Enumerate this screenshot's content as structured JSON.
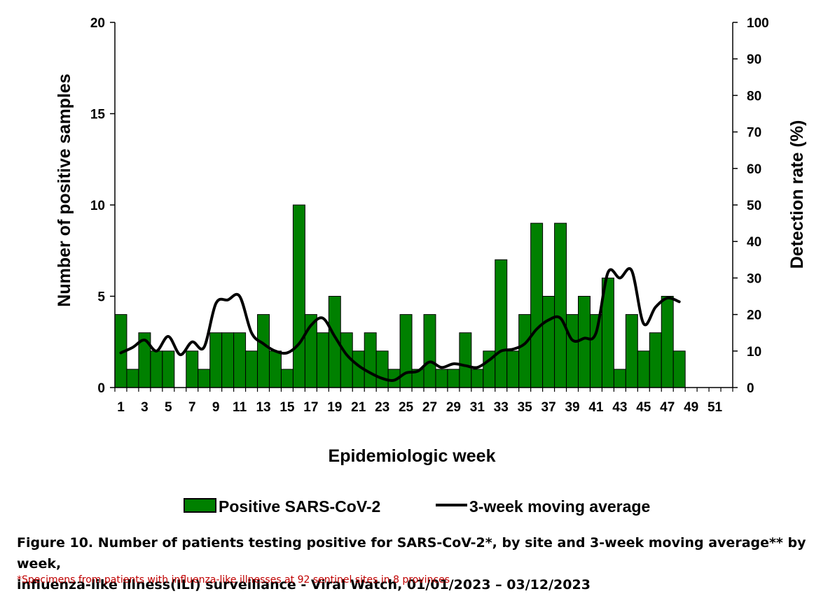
{
  "chart_data": {
    "type": "bar",
    "xlabel": "Epidemiologic week",
    "ylabel": "Number of positive samples",
    "y2label": "Detection rate (%)",
    "ylim": [
      0,
      20
    ],
    "y2lim": [
      0,
      100
    ],
    "yticks": [
      0,
      5,
      10,
      15,
      20
    ],
    "y2ticks": [
      0,
      10,
      20,
      30,
      40,
      50,
      60,
      70,
      80,
      90,
      100
    ],
    "x_tick_labels": [
      "1",
      "3",
      "5",
      "7",
      "9",
      "11",
      "13",
      "15",
      "17",
      "19",
      "21",
      "23",
      "25",
      "27",
      "29",
      "31",
      "33",
      "35",
      "37",
      "39",
      "41",
      "43",
      "45",
      "47",
      "49",
      "51"
    ],
    "weeks": [
      1,
      2,
      3,
      4,
      5,
      6,
      7,
      8,
      9,
      10,
      11,
      12,
      13,
      14,
      15,
      16,
      17,
      18,
      19,
      20,
      21,
      22,
      23,
      24,
      25,
      26,
      27,
      28,
      29,
      30,
      31,
      32,
      33,
      34,
      35,
      36,
      37,
      38,
      39,
      40,
      41,
      42,
      43,
      44,
      45,
      46,
      47,
      48,
      49,
      50,
      51,
      52
    ],
    "series": [
      {
        "name": "Positive SARS-CoV-2",
        "kind": "bar",
        "axis": "left",
        "color": "#008000",
        "values": [
          4,
          1,
          3,
          2,
          2,
          0,
          2,
          1,
          3,
          3,
          3,
          2,
          4,
          2,
          1,
          10,
          4,
          3,
          5,
          3,
          2,
          3,
          2,
          1,
          4,
          1,
          4,
          1,
          1,
          3,
          1,
          2,
          7,
          2,
          4,
          9,
          5,
          9,
          4,
          5,
          4,
          6,
          1,
          4,
          2,
          3,
          5,
          2,
          null,
          null,
          null,
          null
        ]
      },
      {
        "name": "3-week moving average",
        "kind": "line",
        "axis": "right",
        "color": "#000000",
        "values": [
          9.5,
          11,
          13,
          10,
          14,
          9,
          12.5,
          11,
          23,
          24,
          25,
          15,
          12,
          10,
          9.5,
          12,
          17,
          19,
          14,
          9,
          6,
          4,
          2.5,
          2,
          4,
          4.5,
          7,
          5.5,
          6.5,
          6,
          5.5,
          7.5,
          10,
          10.5,
          12,
          16,
          18.5,
          19,
          13,
          13.5,
          15,
          31.5,
          30,
          32,
          17.5,
          22,
          24.5,
          23.5,
          null,
          null,
          null,
          null
        ]
      }
    ],
    "legend_position": "bottom",
    "grid": false
  },
  "caption": {
    "line1": "Figure 10. Number of patients testing positive for SARS-CoV-2*, by site and 3-week moving average** by week,",
    "line2": "influenza-like illness(ILI) surveillance - Viral Watch, 01/01/2023 – 03/12/2023",
    "footnote": "*Specimens from patients with influenza-like illnesses at 92 sentinel sites in 8 provinces"
  }
}
